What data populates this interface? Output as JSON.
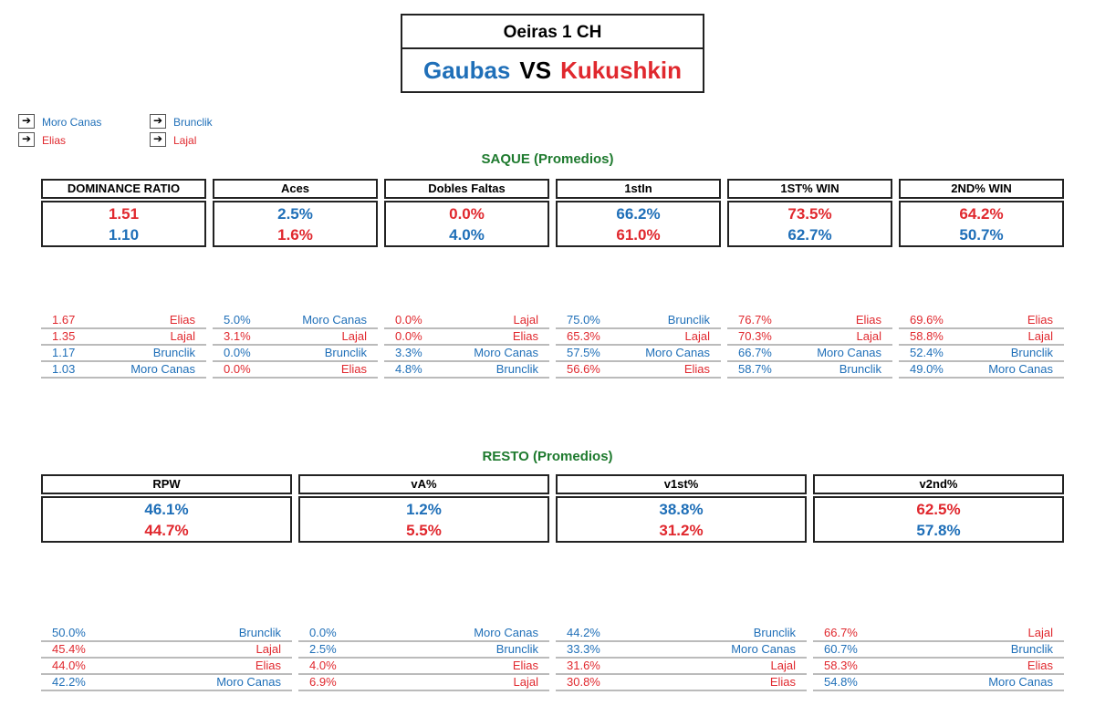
{
  "header": {
    "tournament": "Oeiras 1 CH",
    "player1": "Gaubas",
    "vs": "VS",
    "player2": "Kukushkin"
  },
  "legend": [
    {
      "arrow": "➔",
      "name": "Moro Canas",
      "color": "blue"
    },
    {
      "arrow": "➔",
      "name": "Elias",
      "color": "red"
    },
    {
      "arrow": "➔",
      "name": "Brunclik",
      "color": "blue"
    },
    {
      "arrow": "➔",
      "name": "Lajal",
      "color": "red"
    }
  ],
  "saque": {
    "title": "SAQUE (Promedios)",
    "metrics": [
      {
        "label": "DOMINANCE RATIO",
        "v1": "1.51",
        "c1": "red",
        "v2": "1.10",
        "c2": "blue",
        "rank": [
          {
            "v": "1.67",
            "n": "Elias",
            "c": "red"
          },
          {
            "v": "1.35",
            "n": "Lajal",
            "c": "red"
          },
          {
            "v": "1.17",
            "n": "Brunclik",
            "c": "blue"
          },
          {
            "v": "1.03",
            "n": "Moro Canas",
            "c": "blue"
          }
        ]
      },
      {
        "label": "Aces",
        "v1": "2.5%",
        "c1": "blue",
        "v2": "1.6%",
        "c2": "red",
        "rank": [
          {
            "v": "5.0%",
            "n": "Moro Canas",
            "c": "blue"
          },
          {
            "v": "3.1%",
            "n": "Lajal",
            "c": "red"
          },
          {
            "v": "0.0%",
            "n": "Brunclik",
            "c": "blue"
          },
          {
            "v": "0.0%",
            "n": "Elias",
            "c": "red"
          }
        ]
      },
      {
        "label": "Dobles Faltas",
        "v1": "0.0%",
        "c1": "red",
        "v2": "4.0%",
        "c2": "blue",
        "rank": [
          {
            "v": "0.0%",
            "n": "Lajal",
            "c": "red"
          },
          {
            "v": "0.0%",
            "n": "Elias",
            "c": "red"
          },
          {
            "v": "3.3%",
            "n": "Moro Canas",
            "c": "blue"
          },
          {
            "v": "4.8%",
            "n": "Brunclik",
            "c": "blue"
          }
        ]
      },
      {
        "label": "1stIn",
        "v1": "66.2%",
        "c1": "blue",
        "v2": "61.0%",
        "c2": "red",
        "rank": [
          {
            "v": "75.0%",
            "n": "Brunclik",
            "c": "blue"
          },
          {
            "v": "65.3%",
            "n": "Lajal",
            "c": "red"
          },
          {
            "v": "57.5%",
            "n": "Moro Canas",
            "c": "blue"
          },
          {
            "v": "56.6%",
            "n": "Elias",
            "c": "red"
          }
        ]
      },
      {
        "label": "1ST% WIN",
        "v1": "73.5%",
        "c1": "red",
        "v2": "62.7%",
        "c2": "blue",
        "rank": [
          {
            "v": "76.7%",
            "n": "Elias",
            "c": "red"
          },
          {
            "v": "70.3%",
            "n": "Lajal",
            "c": "red"
          },
          {
            "v": "66.7%",
            "n": "Moro Canas",
            "c": "blue"
          },
          {
            "v": "58.7%",
            "n": "Brunclik",
            "c": "blue"
          }
        ]
      },
      {
        "label": "2ND% WIN",
        "v1": "64.2%",
        "c1": "red",
        "v2": "50.7%",
        "c2": "blue",
        "rank": [
          {
            "v": "69.6%",
            "n": "Elias",
            "c": "red"
          },
          {
            "v": "58.8%",
            "n": "Lajal",
            "c": "red"
          },
          {
            "v": "52.4%",
            "n": "Brunclik",
            "c": "blue"
          },
          {
            "v": "49.0%",
            "n": "Moro Canas",
            "c": "blue"
          }
        ]
      }
    ]
  },
  "resto": {
    "title": "RESTO (Promedios)",
    "metrics": [
      {
        "label": "RPW",
        "v1": "46.1%",
        "c1": "blue",
        "v2": "44.7%",
        "c2": "red",
        "rank": [
          {
            "v": "50.0%",
            "n": "Brunclik",
            "c": "blue"
          },
          {
            "v": "45.4%",
            "n": "Lajal",
            "c": "red"
          },
          {
            "v": "44.0%",
            "n": "Elias",
            "c": "red"
          },
          {
            "v": "42.2%",
            "n": "Moro Canas",
            "c": "blue"
          }
        ]
      },
      {
        "label": "vA%",
        "v1": "1.2%",
        "c1": "blue",
        "v2": "5.5%",
        "c2": "red",
        "rank": [
          {
            "v": "0.0%",
            "n": "Moro Canas",
            "c": "blue"
          },
          {
            "v": "2.5%",
            "n": "Brunclik",
            "c": "blue"
          },
          {
            "v": "4.0%",
            "n": "Elias",
            "c": "red"
          },
          {
            "v": "6.9%",
            "n": "Lajal",
            "c": "red"
          }
        ]
      },
      {
        "label": "v1st%",
        "v1": "38.8%",
        "c1": "blue",
        "v2": "31.2%",
        "c2": "red",
        "rank": [
          {
            "v": "44.2%",
            "n": "Brunclik",
            "c": "blue"
          },
          {
            "v": "33.3%",
            "n": "Moro Canas",
            "c": "blue"
          },
          {
            "v": "31.6%",
            "n": "Lajal",
            "c": "red"
          },
          {
            "v": "30.8%",
            "n": "Elias",
            "c": "red"
          }
        ]
      },
      {
        "label": "v2nd%",
        "v1": "62.5%",
        "c1": "red",
        "v2": "57.8%",
        "c2": "blue",
        "rank": [
          {
            "v": "66.7%",
            "n": "Lajal",
            "c": "red"
          },
          {
            "v": "60.7%",
            "n": "Brunclik",
            "c": "blue"
          },
          {
            "v": "58.3%",
            "n": "Elias",
            "c": "red"
          },
          {
            "v": "54.8%",
            "n": "Moro Canas",
            "c": "blue"
          }
        ]
      }
    ]
  }
}
